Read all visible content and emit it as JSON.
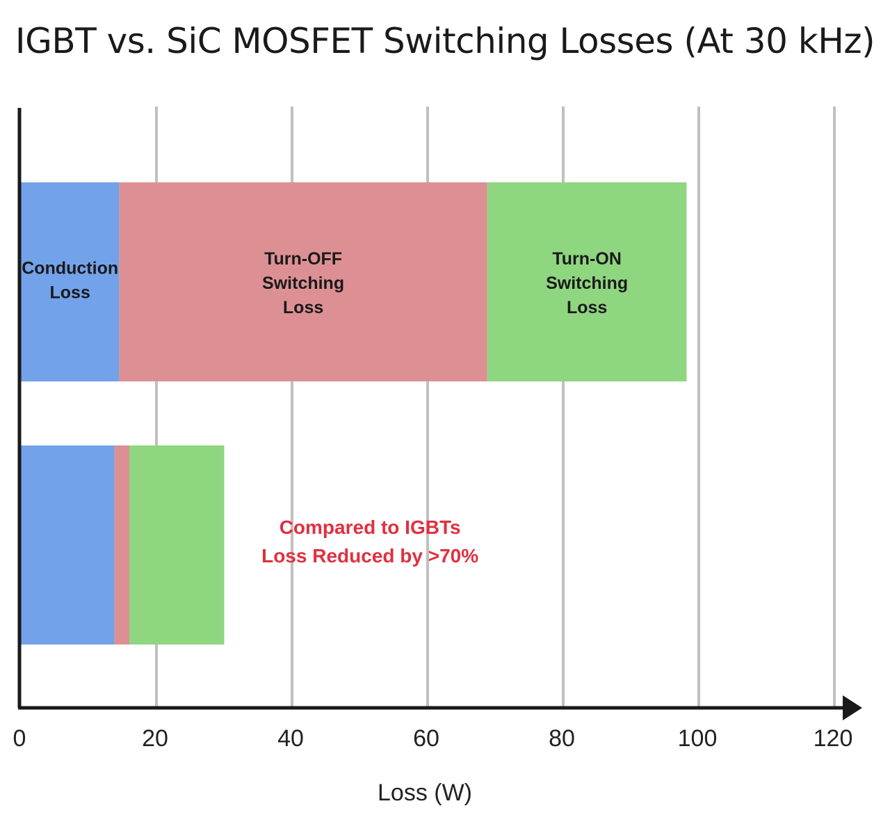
{
  "chart_data": {
    "type": "bar",
    "orientation": "horizontal",
    "stacked": true,
    "title": "IGBT vs. SiC MOSFET Switching Losses (At 30 kHz)",
    "xlabel": "Loss (W)",
    "ylabel": "",
    "xlim": [
      0,
      120
    ],
    "xticks": [
      0,
      20,
      40,
      60,
      80,
      100,
      120
    ],
    "grid": true,
    "categories": [
      "",
      ""
    ],
    "series": [
      {
        "name": "Conduction Loss",
        "label_lines": [
          "Conduction",
          "Loss"
        ],
        "color": "#72a2ea",
        "values": [
          14.5,
          13.8
        ]
      },
      {
        "name": "Turn-OFF Switching Loss",
        "label_lines": [
          "Turn-OFF",
          "Switching",
          "Loss"
        ],
        "color": "#dd9094",
        "values": [
          54.3,
          2.2
        ]
      },
      {
        "name": "Turn-ON Switching Loss",
        "label_lines": [
          "Turn-ON",
          "Switching",
          "Loss"
        ],
        "color": "#8fd680",
        "values": [
          29.4,
          14.0
        ]
      }
    ],
    "annotation": {
      "lines": [
        "Compared to IGBTs",
        "Loss Reduced by >70%"
      ],
      "color": "#e03040",
      "x": 51.5,
      "bar_index": 1
    }
  }
}
